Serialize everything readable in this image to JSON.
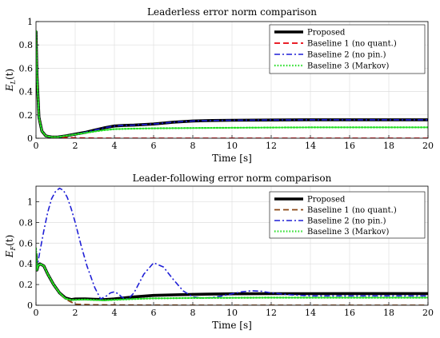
{
  "chart_data": [
    {
      "type": "line",
      "title": "Leaderless error norm comparison",
      "xlabel": "Time [s]",
      "ylabel": "E_L(t)",
      "ylabel_main": "E",
      "ylabel_sub": "L",
      "ylabel_arg": "(t)",
      "xlim": [
        0,
        20
      ],
      "ylim": [
        0,
        1
      ],
      "xticks": [
        0,
        2,
        4,
        6,
        8,
        10,
        12,
        14,
        16,
        18,
        20
      ],
      "yticks": [
        0,
        0.2,
        0.4,
        0.6,
        0.8,
        1
      ],
      "ytick_labels": [
        "0",
        "0.2",
        "0.4",
        "0.6",
        "0.8",
        "1"
      ],
      "grid": true,
      "legend_position": "top-right",
      "series": [
        {
          "name": "Proposed",
          "color": "#000000",
          "dash": "solid",
          "x": [
            0,
            0.05,
            0.15,
            0.3,
            0.5,
            0.8,
            1.1,
            1.5,
            2,
            2.5,
            3,
            3.5,
            4,
            4.5,
            5,
            6,
            7,
            8,
            9,
            10,
            12,
            14,
            16,
            18,
            20
          ],
          "y": [
            0.92,
            0.55,
            0.18,
            0.06,
            0.02,
            0.01,
            0.01,
            0.02,
            0.035,
            0.05,
            0.07,
            0.09,
            0.105,
            0.11,
            0.112,
            0.122,
            0.138,
            0.148,
            0.152,
            0.154,
            0.156,
            0.158,
            0.158,
            0.158,
            0.158
          ]
        },
        {
          "name": "Baseline 1 (no quant.)",
          "color": "#e8000b",
          "dash": "dashed",
          "x": [
            0,
            0.05,
            0.15,
            0.3,
            0.5,
            0.8,
            1.1,
            1.5,
            2,
            3,
            4,
            6,
            8,
            10,
            12,
            14,
            16,
            18,
            20
          ],
          "y": [
            0.92,
            0.55,
            0.18,
            0.06,
            0.02,
            0.01,
            0.008,
            0.006,
            0.003,
            0.001,
            0.0,
            0.0,
            0.0,
            0.0,
            0.0,
            0.0,
            0.0,
            0.0,
            0.0
          ]
        },
        {
          "name": "Baseline 2 (no pin.)",
          "color": "#1f1fd6",
          "dash": "dashdot",
          "x": [
            0,
            0.05,
            0.15,
            0.3,
            0.5,
            0.8,
            1.1,
            1.5,
            2,
            2.5,
            3,
            3.5,
            4,
            4.5,
            5,
            6,
            7,
            8,
            9,
            10,
            12,
            14,
            16,
            18,
            20
          ],
          "y": [
            0.92,
            0.55,
            0.18,
            0.06,
            0.02,
            0.01,
            0.01,
            0.02,
            0.035,
            0.05,
            0.07,
            0.09,
            0.105,
            0.11,
            0.112,
            0.122,
            0.138,
            0.148,
            0.152,
            0.154,
            0.156,
            0.158,
            0.158,
            0.158,
            0.158
          ]
        },
        {
          "name": "Baseline 3 (Markov)",
          "color": "#22dd22",
          "dash": "dotted",
          "x": [
            0,
            0.05,
            0.15,
            0.3,
            0.5,
            0.8,
            1.1,
            1.5,
            2,
            2.5,
            3,
            3.5,
            4,
            5,
            6,
            8,
            10,
            12,
            14,
            16,
            18,
            20
          ],
          "y": [
            0.92,
            0.55,
            0.18,
            0.06,
            0.02,
            0.01,
            0.01,
            0.02,
            0.033,
            0.045,
            0.058,
            0.07,
            0.078,
            0.082,
            0.085,
            0.088,
            0.09,
            0.092,
            0.093,
            0.093,
            0.093,
            0.093
          ]
        }
      ]
    },
    {
      "type": "line",
      "title": "Leader-following error norm comparison",
      "xlabel": "Time [s]",
      "ylabel": "E_F(t)",
      "ylabel_main": "E",
      "ylabel_sub": "F",
      "ylabel_arg": "(t)",
      "xlim": [
        0,
        20
      ],
      "ylim": [
        0,
        1.15
      ],
      "xticks": [
        0,
        2,
        4,
        6,
        8,
        10,
        12,
        14,
        16,
        18,
        20
      ],
      "yticks": [
        0,
        0.2,
        0.4,
        0.6,
        0.8,
        1
      ],
      "ytick_labels": [
        "0",
        "0.2",
        "0.4",
        "0.6",
        "0.8",
        "1"
      ],
      "grid": true,
      "legend_position": "top-right",
      "series": [
        {
          "name": "Proposed",
          "color": "#000000",
          "dash": "solid",
          "x": [
            0,
            0.05,
            0.1,
            0.2,
            0.4,
            0.6,
            0.9,
            1.2,
            1.5,
            1.8,
            2,
            2.5,
            3,
            3.5,
            4,
            5,
            6,
            7,
            8,
            10,
            12,
            14,
            16,
            18,
            20
          ],
          "y": [
            0.5,
            0.34,
            0.38,
            0.4,
            0.38,
            0.3,
            0.2,
            0.12,
            0.07,
            0.055,
            0.06,
            0.062,
            0.058,
            0.055,
            0.062,
            0.08,
            0.095,
            0.1,
            0.105,
            0.11,
            0.112,
            0.112,
            0.113,
            0.113,
            0.113
          ]
        },
        {
          "name": "Baseline 1 (no quant.)",
          "color": "#8b4513",
          "dash": "dashed",
          "x": [
            0,
            0.05,
            0.1,
            0.2,
            0.4,
            0.6,
            0.9,
            1.2,
            1.5,
            1.8,
            2,
            2.5,
            3,
            4,
            6,
            8,
            10,
            12,
            14,
            16,
            18,
            20
          ],
          "y": [
            0.5,
            0.34,
            0.38,
            0.4,
            0.38,
            0.3,
            0.2,
            0.12,
            0.06,
            0.03,
            0.01,
            0.006,
            0.004,
            0.002,
            0.001,
            0.0,
            0.0,
            0.0,
            0.0,
            0.0,
            0.0,
            0.0
          ]
        },
        {
          "name": "Baseline 2 (no pin.)",
          "color": "#1f1fd6",
          "dash": "dashdot",
          "x": [
            0,
            0.1,
            0.2,
            0.4,
            0.6,
            0.8,
            1.0,
            1.2,
            1.4,
            1.6,
            1.8,
            2.0,
            2.3,
            2.6,
            3.0,
            3.3,
            3.6,
            3.8,
            4.0,
            4.2,
            4.4,
            4.7,
            5.0,
            5.5,
            6.0,
            6.5,
            7.0,
            7.5,
            8.0,
            8.5,
            9.0,
            9.5,
            10.0,
            10.5,
            11.0,
            11.5,
            12.0,
            13.0,
            14.0,
            15.0,
            16.0,
            17.0,
            18.0,
            19.0,
            20.0
          ],
          "y": [
            0.34,
            0.42,
            0.52,
            0.72,
            0.9,
            1.03,
            1.1,
            1.13,
            1.11,
            1.04,
            0.93,
            0.8,
            0.58,
            0.38,
            0.17,
            0.06,
            0.09,
            0.12,
            0.13,
            0.11,
            0.075,
            0.06,
            0.12,
            0.3,
            0.41,
            0.37,
            0.25,
            0.14,
            0.08,
            0.07,
            0.075,
            0.09,
            0.11,
            0.13,
            0.14,
            0.135,
            0.12,
            0.1,
            0.09,
            0.09,
            0.09,
            0.09,
            0.09,
            0.09,
            0.09
          ]
        },
        {
          "name": "Baseline 3 (Markov)",
          "color": "#22dd22",
          "dash": "dotted",
          "x": [
            0,
            0.05,
            0.1,
            0.2,
            0.4,
            0.6,
            0.9,
            1.2,
            1.5,
            1.8,
            2,
            2.5,
            3,
            3.5,
            4,
            5,
            6,
            8,
            10,
            12,
            14,
            16,
            18,
            20
          ],
          "y": [
            0.55,
            0.34,
            0.38,
            0.4,
            0.38,
            0.3,
            0.2,
            0.12,
            0.065,
            0.05,
            0.052,
            0.055,
            0.05,
            0.048,
            0.052,
            0.06,
            0.066,
            0.07,
            0.072,
            0.073,
            0.073,
            0.073,
            0.073,
            0.073
          ]
        }
      ]
    }
  ]
}
